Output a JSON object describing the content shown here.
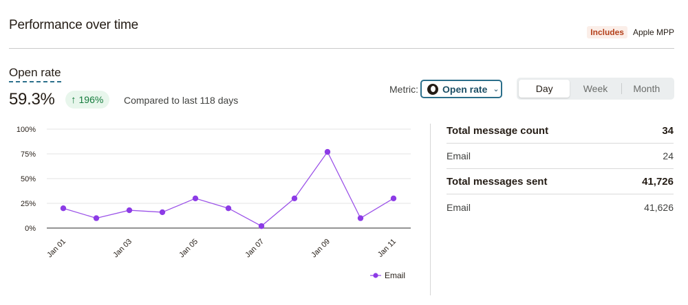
{
  "header": {
    "title": "Performance over time",
    "badge_label": "Includes",
    "badge_text": "Apple MPP"
  },
  "summary": {
    "metric_label": "Open rate",
    "metric_value": "59.3%",
    "delta": "196%",
    "delta_icon": "arrow-up-icon",
    "compare_text": "Compared to last 118 days"
  },
  "controls": {
    "metric_label": "Metric:",
    "metric_selected": "Open rate",
    "periods": [
      "Day",
      "Week",
      "Month"
    ],
    "active_period": "Day"
  },
  "chart_data": {
    "type": "line",
    "x": [
      "Jan 01",
      "Jan 02",
      "Jan 03",
      "Jan 04",
      "Jan 05",
      "Jan 06",
      "Jan 07",
      "Jan 08",
      "Jan 09",
      "Jan 10",
      "Jan 11"
    ],
    "x_tick_labels": [
      "Jan 01",
      "Jan 03",
      "Jan 05",
      "Jan 07",
      "Jan 09",
      "Jan 11"
    ],
    "series": [
      {
        "name": "Email",
        "values": [
          20,
          10,
          18,
          16,
          30,
          20,
          2,
          30,
          77,
          10,
          30
        ]
      }
    ],
    "y_ticks": [
      "0%",
      "25%",
      "50%",
      "75%",
      "100%"
    ],
    "ylim": [
      0,
      100
    ],
    "grid": true,
    "legend": "bottom-right",
    "line_color": "#9b52e8",
    "point_color": "#8c3be6"
  },
  "stats": {
    "total_message_count_label": "Total message count",
    "total_message_count": "34",
    "email_count_label": "Email",
    "email_count": "24",
    "total_messages_sent_label": "Total messages sent",
    "total_messages_sent": "41,726",
    "email_sent_label": "Email",
    "email_sent": "41,626"
  }
}
